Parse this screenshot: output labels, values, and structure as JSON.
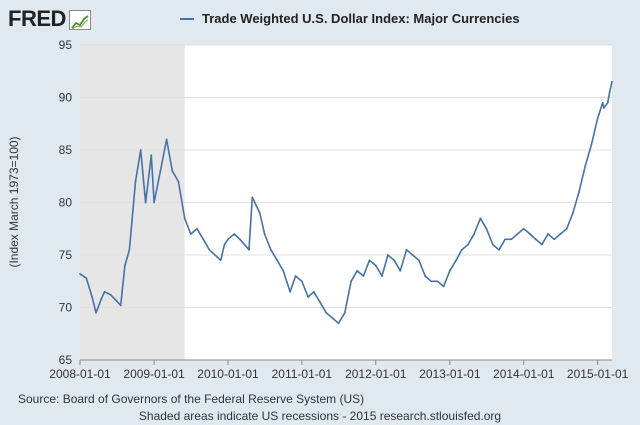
{
  "header": {
    "logo_text": "FRED",
    "legend_label": "Trade Weighted U.S. Dollar Index: Major Currencies"
  },
  "colors": {
    "line": "#4572a7",
    "recession_shade": "#e6e6e6",
    "grid": "#e0e0e0",
    "page_background": "#e1e9f0",
    "plot_background": "#ffffff"
  },
  "chart_data": {
    "type": "line",
    "title": "",
    "xlabel": "",
    "ylabel": "(Index March 1973=100)",
    "ylim": [
      65,
      95
    ],
    "xlim": [
      "2008-01-01",
      "2015-03-13"
    ],
    "yticks": [
      "65",
      "70",
      "75",
      "80",
      "85",
      "90",
      "95"
    ],
    "xticks": [
      "2008-01-01",
      "2009-01-01",
      "2010-01-01",
      "2011-01-01",
      "2012-01-01",
      "2013-01-01",
      "2014-01-01",
      "2015-01-01"
    ],
    "grid": true,
    "legend_position": "top",
    "recession_shading": [
      {
        "start": "2008-01-01",
        "end": "2009-06-01"
      }
    ],
    "series": [
      {
        "name": "Trade Weighted U.S. Dollar Index: Major Currencies",
        "x": [
          "2008-01-01",
          "2008-02-01",
          "2008-03-01",
          "2008-03-20",
          "2008-04-15",
          "2008-05-01",
          "2008-06-01",
          "2008-07-01",
          "2008-07-20",
          "2008-08-10",
          "2008-09-01",
          "2008-10-01",
          "2008-10-27",
          "2008-11-20",
          "2008-12-18",
          "2009-01-01",
          "2009-02-01",
          "2009-03-04",
          "2009-04-01",
          "2009-05-01",
          "2009-06-01",
          "2009-07-01",
          "2009-08-01",
          "2009-09-01",
          "2009-10-01",
          "2009-11-26",
          "2009-12-15",
          "2010-01-01",
          "2010-02-01",
          "2010-03-01",
          "2010-04-15",
          "2010-05-01",
          "2010-06-07",
          "2010-07-01",
          "2010-08-01",
          "2010-09-01",
          "2010-10-01",
          "2010-11-04",
          "2010-12-01",
          "2011-01-01",
          "2011-02-01",
          "2011-03-01",
          "2011-04-01",
          "2011-05-01",
          "2011-06-01",
          "2011-07-01",
          "2011-08-01",
          "2011-09-01",
          "2011-10-01",
          "2011-11-01",
          "2011-12-01",
          "2012-01-01",
          "2012-02-01",
          "2012-03-01",
          "2012-04-01",
          "2012-05-01",
          "2012-06-01",
          "2012-07-01",
          "2012-08-01",
          "2012-09-01",
          "2012-10-01",
          "2012-11-01",
          "2012-12-01",
          "2013-01-01",
          "2013-02-01",
          "2013-03-01",
          "2013-04-01",
          "2013-05-01",
          "2013-06-01",
          "2013-07-01",
          "2013-08-01",
          "2013-09-01",
          "2013-10-01",
          "2013-11-01",
          "2013-12-01",
          "2014-01-01",
          "2014-02-01",
          "2014-03-01",
          "2014-04-01",
          "2014-05-01",
          "2014-06-01",
          "2014-07-01",
          "2014-08-01",
          "2014-09-01",
          "2014-10-01",
          "2014-11-01",
          "2014-12-01",
          "2015-01-01",
          "2015-01-26",
          "2015-02-01",
          "2015-02-20",
          "2015-03-01",
          "2015-03-13"
        ],
        "y": [
          73.2,
          72.8,
          71.0,
          69.5,
          70.8,
          71.5,
          71.2,
          70.6,
          70.2,
          74.0,
          75.5,
          82.0,
          85.0,
          80.0,
          84.5,
          80.0,
          83.0,
          86.0,
          83.0,
          82.0,
          78.5,
          77.0,
          77.5,
          76.5,
          75.5,
          74.5,
          76.0,
          76.5,
          77.0,
          76.5,
          75.5,
          80.5,
          79.0,
          77.0,
          75.5,
          74.5,
          73.5,
          71.5,
          73.0,
          72.5,
          71.0,
          71.5,
          70.5,
          69.5,
          69.0,
          68.5,
          69.5,
          72.5,
          73.5,
          73.0,
          74.5,
          74.0,
          73.0,
          75.0,
          74.5,
          73.5,
          75.5,
          75.0,
          74.5,
          73.0,
          72.5,
          72.5,
          72.0,
          73.5,
          74.5,
          75.5,
          76.0,
          77.0,
          78.5,
          77.5,
          76.0,
          75.5,
          76.5,
          76.5,
          77.0,
          77.5,
          77.0,
          76.5,
          76.0,
          77.0,
          76.5,
          77.0,
          77.5,
          79.0,
          81.0,
          83.5,
          85.5,
          88.0,
          89.5,
          89.0,
          89.5,
          90.5,
          91.5
        ]
      }
    ]
  },
  "footer": {
    "source": "Source: Board of Governors of the Federal Reserve System (US)",
    "note": "Shaded areas indicate US recessions - 2015 research.stlouisfed.org"
  }
}
